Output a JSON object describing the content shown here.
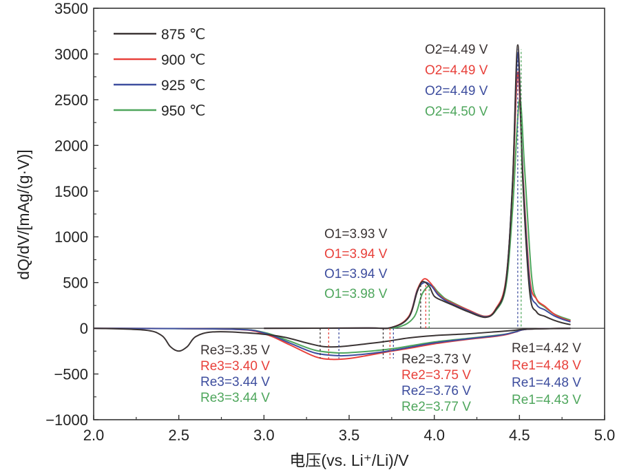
{
  "chart_data": {
    "type": "line",
    "title": "",
    "xlabel": "电压(vs. Li⁺/Li)/V",
    "ylabel": "dQ/dV/[mAg/(g·V)]",
    "xlim": [
      2.0,
      5.0
    ],
    "ylim": [
      -1000,
      3500
    ],
    "xticks": [
      2.0,
      2.5,
      3.0,
      3.5,
      4.0,
      4.5,
      5.0
    ],
    "xtick_labels": [
      "2.0",
      "2.5",
      "3.0",
      "3.5",
      "4.0",
      "4.5",
      "5.0"
    ],
    "yticks": [
      -1000,
      -500,
      0,
      500,
      1000,
      1500,
      2000,
      2500,
      3000,
      3500
    ],
    "ytick_labels": [
      "−1000",
      "−500",
      "0",
      "500",
      "1000",
      "1500",
      "2000",
      "2500",
      "3000",
      "3500"
    ],
    "legend_position": "top-left",
    "series": [
      {
        "name": "875 ℃",
        "color": "#3a3333",
        "charge": {
          "x": [
            3.0,
            3.6,
            3.75,
            3.85,
            3.9,
            3.93,
            3.97,
            4.0,
            4.05,
            4.1,
            4.2,
            4.3,
            4.36,
            4.42,
            4.46,
            4.49,
            4.52,
            4.56,
            4.6,
            4.65,
            4.7,
            4.75,
            4.8
          ],
          "y": [
            0,
            2,
            10,
            120,
            400,
            510,
            460,
            350,
            300,
            260,
            180,
            120,
            200,
            500,
            1600,
            3100,
            1600,
            400,
            180,
            130,
            90,
            60,
            40
          ]
        },
        "discharge": {
          "x": [
            2.0,
            2.3,
            2.4,
            2.45,
            2.5,
            2.55,
            2.6,
            2.7,
            2.9,
            3.1,
            3.25,
            3.35,
            3.45,
            3.6,
            3.73,
            3.85,
            4.0,
            4.2,
            4.35,
            4.42,
            4.48,
            4.55,
            4.8
          ],
          "y": [
            0,
            -20,
            -80,
            -200,
            -250,
            -200,
            -90,
            -40,
            -50,
            -90,
            -160,
            -200,
            -200,
            -170,
            -140,
            -105,
            -80,
            -60,
            -40,
            -30,
            -20,
            -8,
            0
          ]
        }
      },
      {
        "name": "900 ℃",
        "color": "#e8403a",
        "charge": {
          "x": [
            3.0,
            3.6,
            3.75,
            3.85,
            3.9,
            3.94,
            3.98,
            4.02,
            4.06,
            4.1,
            4.2,
            4.3,
            4.36,
            4.42,
            4.46,
            4.49,
            4.52,
            4.56,
            4.6,
            4.65,
            4.7,
            4.75,
            4.8
          ],
          "y": [
            0,
            2,
            10,
            130,
            420,
            540,
            490,
            380,
            320,
            280,
            200,
            130,
            210,
            520,
            1550,
            2800,
            1700,
            550,
            320,
            240,
            160,
            110,
            80
          ]
        },
        "discharge": {
          "x": [
            2.0,
            2.8,
            3.0,
            3.15,
            3.3,
            3.4,
            3.5,
            3.6,
            3.75,
            3.85,
            4.0,
            4.2,
            4.35,
            4.42,
            4.48,
            4.55,
            4.8
          ],
          "y": [
            0,
            -10,
            -60,
            -180,
            -310,
            -340,
            -330,
            -300,
            -250,
            -220,
            -170,
            -120,
            -90,
            -70,
            -40,
            -10,
            0
          ]
        }
      },
      {
        "name": "925 ℃",
        "color": "#3d4d9e",
        "charge": {
          "x": [
            3.0,
            3.6,
            3.75,
            3.85,
            3.9,
            3.94,
            3.98,
            4.02,
            4.06,
            4.1,
            4.2,
            4.3,
            4.36,
            4.42,
            4.46,
            4.49,
            4.52,
            4.56,
            4.6,
            4.65,
            4.7,
            4.75,
            4.8
          ],
          "y": [
            0,
            2,
            10,
            120,
            410,
            500,
            470,
            370,
            310,
            270,
            190,
            125,
            200,
            500,
            1600,
            3000,
            1650,
            480,
            260,
            200,
            140,
            100,
            70
          ]
        },
        "discharge": {
          "x": [
            2.0,
            2.8,
            3.0,
            3.15,
            3.3,
            3.44,
            3.55,
            3.65,
            3.76,
            3.85,
            4.0,
            4.2,
            4.35,
            4.42,
            4.48,
            4.55,
            4.8
          ],
          "y": [
            0,
            -10,
            -50,
            -160,
            -270,
            -300,
            -290,
            -270,
            -240,
            -210,
            -160,
            -115,
            -85,
            -65,
            -38,
            -10,
            0
          ]
        }
      },
      {
        "name": "950 ℃",
        "color": "#4ea65c",
        "charge": {
          "x": [
            3.0,
            3.6,
            3.78,
            3.88,
            3.93,
            3.98,
            4.02,
            4.06,
            4.1,
            4.2,
            4.3,
            4.36,
            4.42,
            4.46,
            4.5,
            4.53,
            4.57,
            4.6,
            4.65,
            4.7,
            4.75,
            4.8
          ],
          "y": [
            0,
            2,
            10,
            120,
            380,
            470,
            400,
            330,
            290,
            200,
            130,
            190,
            450,
            1300,
            2500,
            1750,
            600,
            320,
            230,
            160,
            120,
            90
          ]
        },
        "discharge": {
          "x": [
            2.0,
            2.8,
            3.0,
            3.15,
            3.3,
            3.44,
            3.55,
            3.65,
            3.77,
            3.85,
            4.0,
            4.2,
            4.35,
            4.43,
            4.48,
            4.55,
            4.8
          ],
          "y": [
            0,
            -10,
            -45,
            -140,
            -240,
            -270,
            -260,
            -245,
            -220,
            -195,
            -150,
            -110,
            -80,
            -60,
            -35,
            -10,
            0
          ]
        }
      }
    ],
    "annotations": {
      "o2": [
        {
          "label": "O2=4.49 V",
          "color": "#3a3333"
        },
        {
          "label": "O2=4.49 V",
          "color": "#e8403a"
        },
        {
          "label": "O2=4.49 V",
          "color": "#3d4d9e"
        },
        {
          "label": "O2=4.50 V",
          "color": "#4ea65c"
        }
      ],
      "o1": [
        {
          "label": "O1=3.93 V",
          "color": "#3a3333"
        },
        {
          "label": "O1=3.94 V",
          "color": "#e8403a"
        },
        {
          "label": "O1=3.94 V",
          "color": "#3d4d9e"
        },
        {
          "label": "O1=3.98 V",
          "color": "#4ea65c"
        }
      ],
      "re3": [
        {
          "label": "Re3=3.35 V",
          "color": "#3a3333"
        },
        {
          "label": "Re3=3.40 V",
          "color": "#e8403a"
        },
        {
          "label": "Re3=3.44 V",
          "color": "#3d4d9e"
        },
        {
          "label": "Re3=3.44 V",
          "color": "#4ea65c"
        }
      ],
      "re2": [
        {
          "label": "Re2=3.73 V",
          "color": "#3a3333"
        },
        {
          "label": "Re2=3.75 V",
          "color": "#e8403a"
        },
        {
          "label": "Re2=3.76 V",
          "color": "#3d4d9e"
        },
        {
          "label": "Re2=3.77 V",
          "color": "#4ea65c"
        }
      ],
      "re1": [
        {
          "label": "Re1=4.42 V",
          "color": "#3a3333"
        },
        {
          "label": "Re1=4.48 V",
          "color": "#e8403a"
        },
        {
          "label": "Re1=4.48 V",
          "color": "#3d4d9e"
        },
        {
          "label": "Re1=4.43 V",
          "color": "#4ea65c"
        }
      ]
    },
    "peak_lines": [
      {
        "x": 3.33,
        "color": "#3a3333"
      },
      {
        "x": 3.38,
        "color": "#e8403a"
      },
      {
        "x": 3.44,
        "color": "#3d4d9e"
      },
      {
        "x": 3.7,
        "color": "#3a3333"
      },
      {
        "x": 3.74,
        "color": "#e8403a"
      },
      {
        "x": 3.76,
        "color": "#3d4d9e"
      },
      {
        "x": 3.92,
        "color": "#3a3333"
      },
      {
        "x": 3.95,
        "color": "#e8403a"
      },
      {
        "x": 3.97,
        "color": "#4ea65c"
      },
      {
        "x": 4.49,
        "color": "#3d4d9e"
      },
      {
        "x": 4.51,
        "color": "#4ea65c"
      }
    ]
  }
}
